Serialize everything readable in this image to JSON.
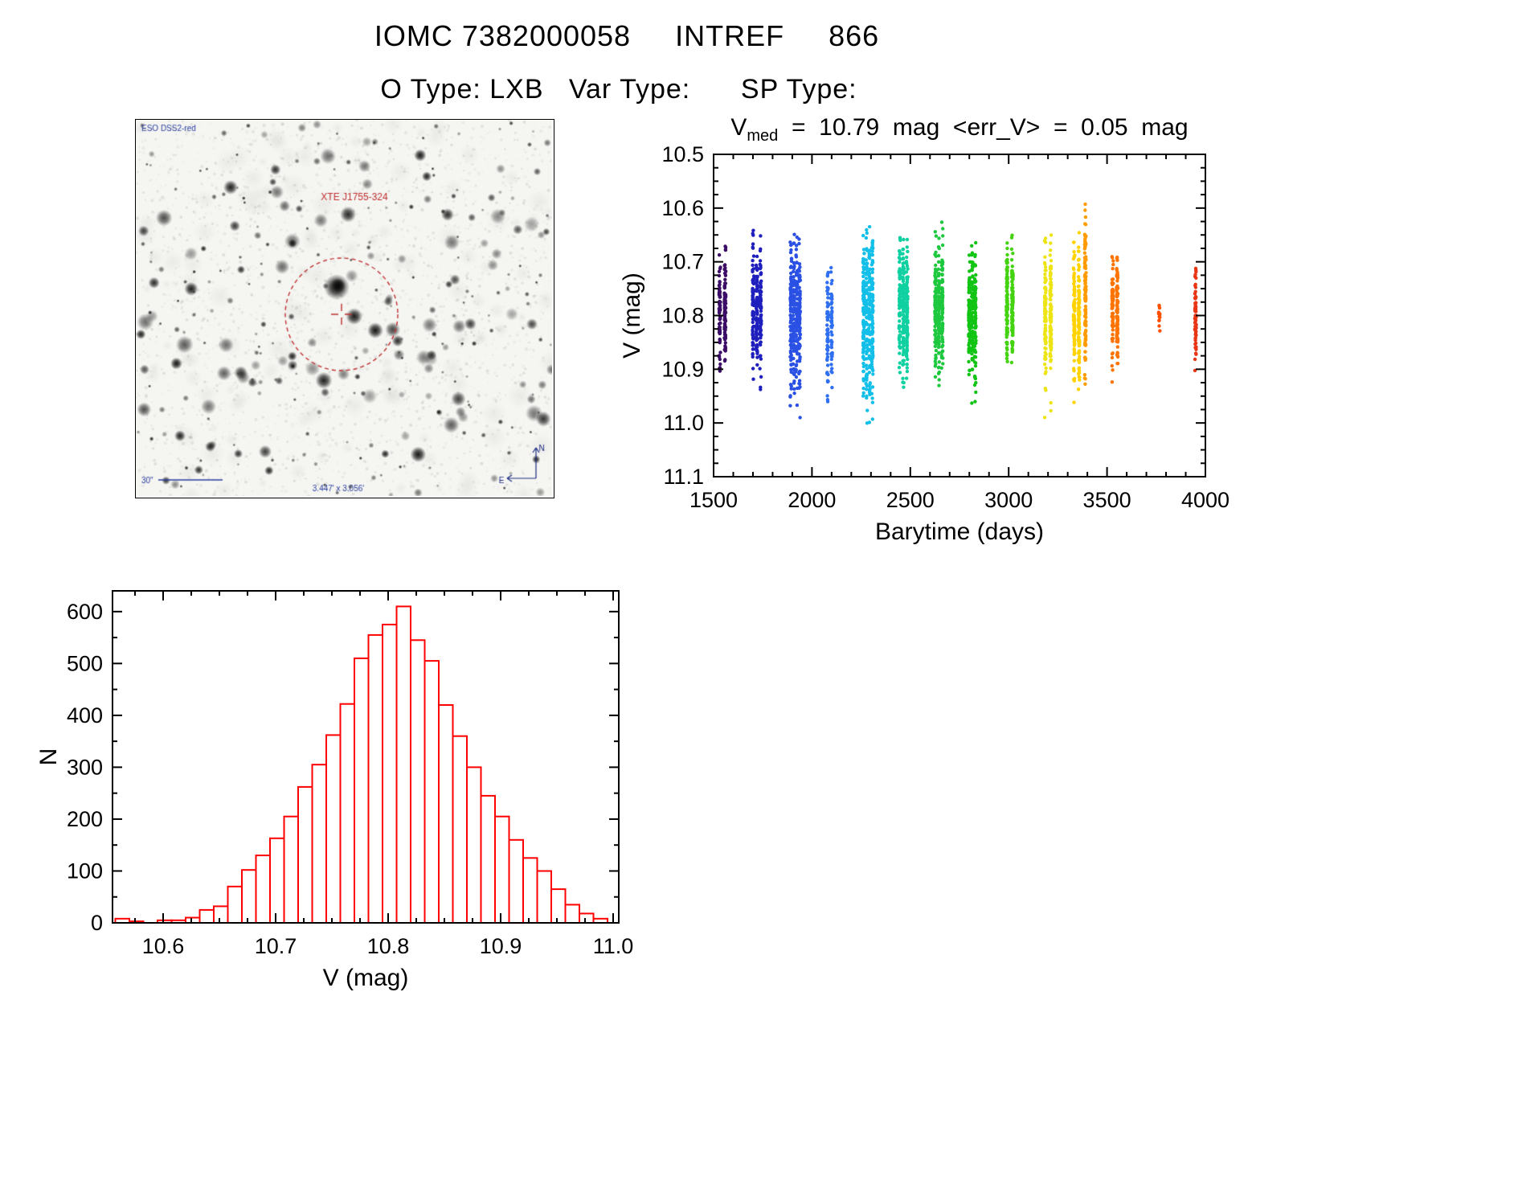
{
  "header": {
    "title": "IOMC 7382000058     INTREF     866",
    "subtitle": "O Type: LXB   Var Type:      SP Type:"
  },
  "finder": {
    "survey_label": "ESO DSS2-red",
    "target_label": "XTE J1755-324",
    "scale_label": "30\"",
    "fov_label": "3.447' x 3.056'",
    "compass_north": "N",
    "compass_east": "E",
    "annotation_red": "#c03030",
    "annotation_blue": "#2a3f9f"
  },
  "chart_data": [
    {
      "type": "scatter",
      "title_parts": {
        "base": "V",
        "sub": "med",
        "rest": "  =  10.79  mag  <err_V>  =  0.05  mag"
      },
      "xlabel": "Barytime (days)",
      "ylabel": "V (mag)",
      "xlim": [
        1500,
        4000
      ],
      "ylim": [
        10.5,
        11.1
      ],
      "y_inverted": true,
      "grid": false,
      "xticks": [
        {
          "v": 1500,
          "label": "1500"
        },
        {
          "v": 2000,
          "label": "2000"
        },
        {
          "v": 2500,
          "label": "2500"
        },
        {
          "v": 3000,
          "label": "3000"
        },
        {
          "v": 3500,
          "label": "3500"
        },
        {
          "v": 4000,
          "label": "4000"
        }
      ],
      "yticks": [
        {
          "v": 10.5,
          "label": "10.5"
        },
        {
          "v": 10.6,
          "label": "10.6"
        },
        {
          "v": 10.7,
          "label": "10.7"
        },
        {
          "v": 10.8,
          "label": "10.8"
        },
        {
          "v": 10.9,
          "label": "10.9"
        },
        {
          "v": 11.0,
          "label": "11.0"
        },
        {
          "v": 11.1,
          "label": "11.1"
        }
      ],
      "x_minor_step": 100,
      "y_minor_step": 0.025,
      "clusters": [
        {
          "t": 1545,
          "hw": 16,
          "color": "#3c0d66",
          "vc": 10.795,
          "sd": 0.05,
          "vmin": 10.665,
          "vmax": 10.935,
          "n": 170
        },
        {
          "t": 1720,
          "hw": 22,
          "color": "#1f1fbe",
          "vc": 10.79,
          "sd": 0.06,
          "vmin": 10.615,
          "vmax": 10.975,
          "n": 260
        },
        {
          "t": 1915,
          "hw": 26,
          "color": "#2a50e4",
          "vc": 10.8,
          "sd": 0.075,
          "vmin": 10.615,
          "vmax": 11.01,
          "n": 330
        },
        {
          "t": 2090,
          "hw": 12,
          "color": "#2f6ff0",
          "vc": 10.82,
          "sd": 0.06,
          "vmin": 10.695,
          "vmax": 10.975,
          "n": 110
        },
        {
          "t": 2285,
          "hw": 26,
          "color": "#12bfe8",
          "vc": 10.8,
          "sd": 0.08,
          "vmin": 10.615,
          "vmax": 11.015,
          "n": 340
        },
        {
          "t": 2465,
          "hw": 22,
          "color": "#0fd0a0",
          "vc": 10.785,
          "sd": 0.06,
          "vmin": 10.635,
          "vmax": 10.965,
          "n": 290
        },
        {
          "t": 2645,
          "hw": 20,
          "color": "#1dc83e",
          "vc": 10.79,
          "sd": 0.06,
          "vmin": 10.62,
          "vmax": 10.955,
          "n": 260
        },
        {
          "t": 2815,
          "hw": 18,
          "color": "#12c414",
          "vc": 10.8,
          "sd": 0.06,
          "vmin": 10.64,
          "vmax": 10.985,
          "n": 240
        },
        {
          "t": 3005,
          "hw": 16,
          "color": "#44d311",
          "vc": 10.78,
          "sd": 0.055,
          "vmin": 10.62,
          "vmax": 10.92,
          "n": 200
        },
        {
          "t": 3200,
          "hw": 16,
          "color": "#ede414",
          "vc": 10.8,
          "sd": 0.06,
          "vmin": 10.645,
          "vmax": 10.995,
          "n": 220
        },
        {
          "t": 3345,
          "hw": 14,
          "color": "#ffd300",
          "vc": 10.8,
          "sd": 0.06,
          "vmin": 10.635,
          "vmax": 10.985,
          "n": 200
        },
        {
          "t": 3390,
          "hw": 8,
          "color": "#ff9a00",
          "vc": 10.76,
          "sd": 0.08,
          "vmin": 10.575,
          "vmax": 10.935,
          "n": 120
        },
        {
          "t": 3540,
          "hw": 14,
          "color": "#ff7300",
          "vc": 10.79,
          "sd": 0.05,
          "vmin": 10.675,
          "vmax": 10.935,
          "n": 160
        },
        {
          "t": 3765,
          "hw": 5,
          "color": "#ff5000",
          "vc": 10.8,
          "sd": 0.012,
          "vmin": 10.775,
          "vmax": 10.83,
          "n": 14
        },
        {
          "t": 3950,
          "hw": 9,
          "color": "#e83614",
          "vc": 10.79,
          "sd": 0.055,
          "vmin": 10.675,
          "vmax": 10.915,
          "n": 70
        }
      ]
    },
    {
      "type": "bar",
      "title": "",
      "xlabel": "V (mag)",
      "ylabel": "N",
      "xlim": [
        10.555,
        11.005
      ],
      "ylim": [
        0,
        640
      ],
      "grid": false,
      "xticks": [
        {
          "v": 10.6,
          "label": "10.6"
        },
        {
          "v": 10.7,
          "label": "10.7"
        },
        {
          "v": 10.8,
          "label": "10.8"
        },
        {
          "v": 10.9,
          "label": "10.9"
        },
        {
          "v": 11.0,
          "label": "11.0"
        }
      ],
      "yticks": [
        {
          "v": 0,
          "label": "0"
        },
        {
          "v": 100,
          "label": "100"
        },
        {
          "v": 200,
          "label": "200"
        },
        {
          "v": 300,
          "label": "300"
        },
        {
          "v": 400,
          "label": "400"
        },
        {
          "v": 500,
          "label": "500"
        },
        {
          "v": 600,
          "label": "600"
        }
      ],
      "x_minor_step": 0.025,
      "y_minor_step": 50,
      "bin_start": 10.5575,
      "bin_width": 0.0125,
      "counts": [
        8,
        3,
        0,
        5,
        5,
        10,
        25,
        32,
        70,
        102,
        130,
        163,
        205,
        262,
        305,
        362,
        422,
        510,
        555,
        575,
        610,
        545,
        505,
        420,
        360,
        300,
        245,
        205,
        160,
        125,
        100,
        65,
        35,
        18,
        8
      ],
      "bar_color": "#ff0000",
      "axis_color": "#000000"
    }
  ]
}
